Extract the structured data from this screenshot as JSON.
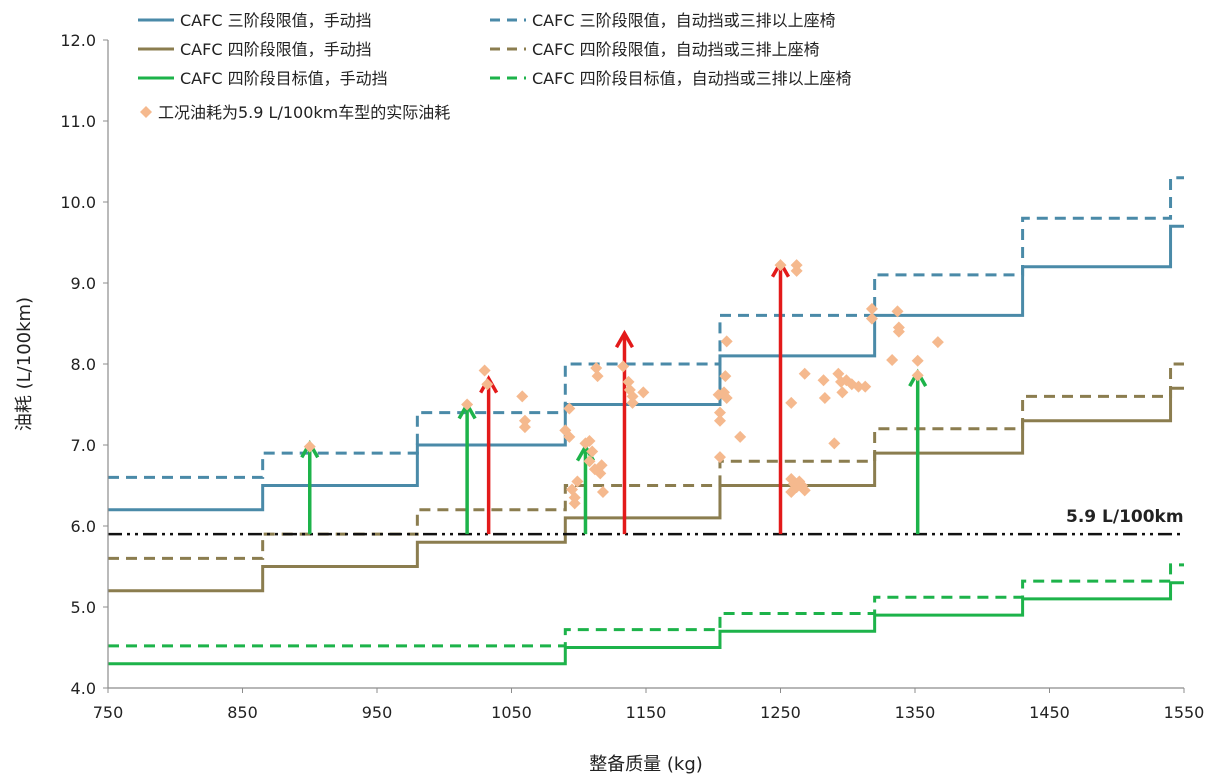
{
  "chart_data": {
    "type": "line",
    "xlabel": "整备质量 (kg)",
    "ylabel": "油耗 (L/100km)",
    "xlim": [
      750,
      1550
    ],
    "ylim": [
      4.0,
      12.0
    ],
    "x_ticks": [
      750,
      850,
      950,
      1050,
      1150,
      1250,
      1350,
      1450,
      1550
    ],
    "x_tick_labels": [
      "750",
      "850",
      "950",
      "1050",
      "1150",
      "1250",
      "1350",
      "1450",
      "1550"
    ],
    "y_ticks": [
      4,
      5,
      6,
      7,
      8,
      9,
      10,
      11,
      12
    ],
    "y_tick_labels": [
      "4.0",
      "5.0",
      "6.0",
      "7.0",
      "8.0",
      "9.0",
      "10.0",
      "11.0",
      "12.0"
    ],
    "grid": false,
    "legend_position": "top-left",
    "step_breaks": [
      750,
      865,
      980,
      1090,
      1205,
      1320,
      1430,
      1540,
      1550
    ],
    "series": [
      {
        "name": "CAFC 三阶段限值，手动挡",
        "color": "#4a8aa8",
        "dash": "solid",
        "values": [
          6.2,
          6.5,
          7.0,
          7.5,
          8.1,
          8.6,
          9.2,
          9.7
        ]
      },
      {
        "name": "CAFC 三阶段限值，自动挡或三排以上座椅",
        "color": "#4a8aa8",
        "dash": "dashed",
        "values": [
          6.6,
          6.9,
          7.4,
          8.0,
          8.6,
          9.1,
          9.8,
          10.3
        ]
      },
      {
        "name": "CAFC 四阶段限值，手动挡",
        "color": "#8b7d4f",
        "dash": "solid",
        "values": [
          5.2,
          5.5,
          5.8,
          6.1,
          6.5,
          6.9,
          7.3,
          7.7
        ]
      },
      {
        "name": "CAFC 四阶段限值，自动挡或三排上座椅",
        "color": "#8b7d4f",
        "dash": "dashed",
        "values": [
          5.6,
          5.9,
          6.2,
          6.5,
          6.8,
          7.2,
          7.6,
          8.0
        ]
      },
      {
        "name": "CAFC 四阶段目标值，手动挡",
        "color": "#1db34a",
        "dash": "solid",
        "values": [
          4.3,
          4.3,
          4.3,
          4.5,
          4.7,
          4.9,
          5.1,
          5.3
        ]
      },
      {
        "name": "CAFC 四阶段目标值，自动挡或三排以上座椅",
        "color": "#1db34a",
        "dash": "dashed",
        "values": [
          4.52,
          4.52,
          4.52,
          4.72,
          4.92,
          5.12,
          5.32,
          5.52
        ]
      }
    ],
    "reference_line": {
      "y": 5.9,
      "label": "5.9 L/100km",
      "color": "#111111",
      "dash": "dashdot"
    },
    "scatter": {
      "name": "工况油耗为5.9 L/100km车型的实际油耗",
      "color": "#f5b98e",
      "points": [
        [
          900,
          6.98
        ],
        [
          1017,
          7.5
        ],
        [
          1030,
          7.92
        ],
        [
          1032,
          7.75
        ],
        [
          1058,
          7.6
        ],
        [
          1060,
          7.3
        ],
        [
          1060,
          7.22
        ],
        [
          1093,
          7.45
        ],
        [
          1090,
          7.18
        ],
        [
          1093,
          7.1
        ],
        [
          1095,
          6.45
        ],
        [
          1097,
          6.28
        ],
        [
          1097,
          6.35
        ],
        [
          1099,
          6.55
        ],
        [
          1105,
          7.02
        ],
        [
          1108,
          7.05
        ],
        [
          1110,
          6.92
        ],
        [
          1108,
          6.8
        ],
        [
          1112,
          6.7
        ],
        [
          1116,
          6.65
        ],
        [
          1117,
          6.75
        ],
        [
          1118,
          6.42
        ],
        [
          1113,
          7.95
        ],
        [
          1114,
          7.85
        ],
        [
          1133,
          7.97
        ],
        [
          1137,
          7.78
        ],
        [
          1138,
          7.68
        ],
        [
          1140,
          7.6
        ],
        [
          1140,
          7.52
        ],
        [
          1148,
          7.65
        ],
        [
          1204,
          7.62
        ],
        [
          1205,
          7.4
        ],
        [
          1205,
          7.3
        ],
        [
          1205,
          6.85
        ],
        [
          1208,
          7.65
        ],
        [
          1210,
          7.58
        ],
        [
          1209,
          7.85
        ],
        [
          1210,
          8.28
        ],
        [
          1220,
          7.1
        ],
        [
          1250,
          9.22
        ],
        [
          1262,
          9.22
        ],
        [
          1262,
          9.15
        ],
        [
          1258,
          7.52
        ],
        [
          1268,
          7.88
        ],
        [
          1258,
          6.58
        ],
        [
          1260,
          6.52
        ],
        [
          1262,
          6.48
        ],
        [
          1264,
          6.55
        ],
        [
          1266,
          6.5
        ],
        [
          1258,
          6.42
        ],
        [
          1268,
          6.44
        ],
        [
          1282,
          7.8
        ],
        [
          1283,
          7.58
        ],
        [
          1290,
          7.02
        ],
        [
          1293,
          7.88
        ],
        [
          1295,
          7.78
        ],
        [
          1296,
          7.65
        ],
        [
          1299,
          7.8
        ],
        [
          1303,
          7.75
        ],
        [
          1308,
          7.72
        ],
        [
          1313,
          7.72
        ],
        [
          1318,
          8.68
        ],
        [
          1318,
          8.56
        ],
        [
          1337,
          8.65
        ],
        [
          1338,
          8.45
        ],
        [
          1338,
          8.4
        ],
        [
          1333,
          8.05
        ],
        [
          1352,
          8.04
        ],
        [
          1352,
          7.86
        ],
        [
          1367,
          8.27
        ]
      ]
    },
    "arrows": [
      {
        "x": 900,
        "from": 5.9,
        "to": 7.02,
        "color": "#1db34a"
      },
      {
        "x": 1017,
        "from": 5.9,
        "to": 7.5,
        "color": "#1db34a"
      },
      {
        "x": 1033,
        "from": 5.9,
        "to": 7.82,
        "color": "#e31a1a"
      },
      {
        "x": 1105,
        "from": 5.9,
        "to": 6.98,
        "color": "#1db34a"
      },
      {
        "x": 1134,
        "from": 5.9,
        "to": 8.38,
        "color": "#e31a1a"
      },
      {
        "x": 1250,
        "from": 5.9,
        "to": 9.25,
        "color": "#e31a1a"
      },
      {
        "x": 1352,
        "from": 5.9,
        "to": 7.9,
        "color": "#1db34a"
      }
    ]
  }
}
